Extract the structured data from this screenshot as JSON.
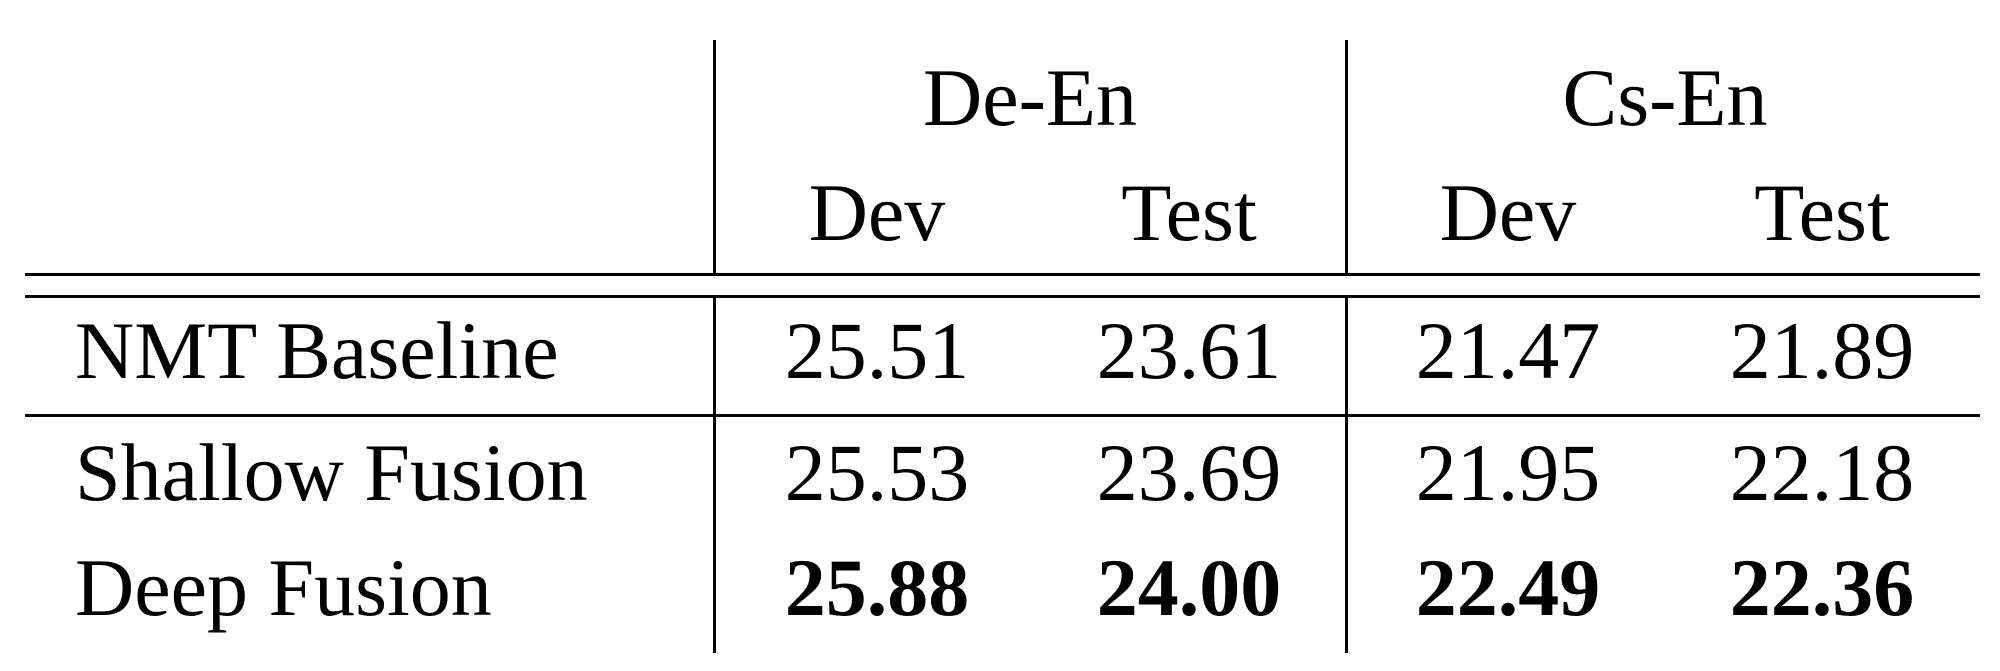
{
  "table": {
    "groups": [
      {
        "label": "De-En"
      },
      {
        "label": "Cs-En"
      }
    ],
    "subheaders": [
      "Dev",
      "Test",
      "Dev",
      "Test"
    ],
    "rows": [
      {
        "label": "NMT Baseline",
        "values": [
          "25.51",
          "23.61",
          "21.47",
          "21.89"
        ],
        "bold": false
      },
      {
        "label": "Shallow Fusion",
        "values": [
          "25.53",
          "23.69",
          "21.95",
          "22.18"
        ],
        "bold": false
      },
      {
        "label": "Deep Fusion",
        "values": [
          "25.88",
          "24.00",
          "22.49",
          "22.36"
        ],
        "bold": true
      }
    ]
  }
}
